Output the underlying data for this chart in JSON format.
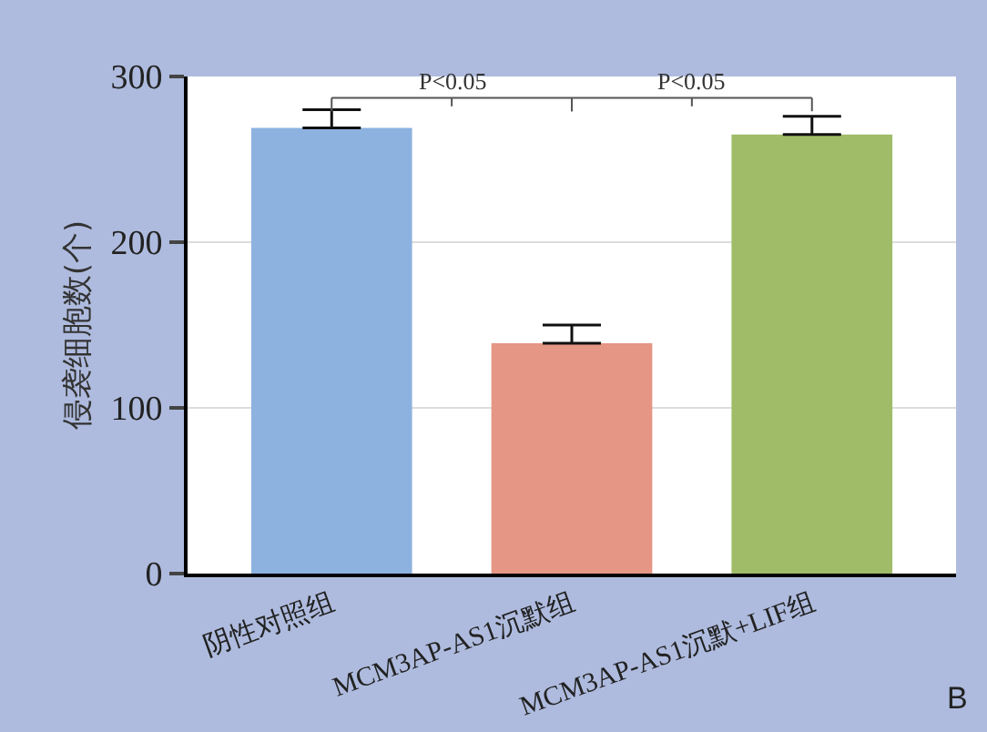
{
  "chart_data": {
    "type": "bar",
    "ylabel": "侵袭细胞数(个)",
    "categories": [
      "阴性对照组",
      "MCM3AP-AS1沉默组",
      "MCM3AP-AS1沉默+LIF组"
    ],
    "values": [
      269,
      139,
      265
    ],
    "colors": [
      "#8db2e0",
      "#e59685",
      "#a0bc68"
    ],
    "errors": [
      [
        269,
        280
      ],
      [
        139,
        150
      ],
      [
        265,
        276
      ]
    ],
    "ylim": [
      0,
      300
    ],
    "yticks": [
      0,
      100,
      200,
      300
    ],
    "grid": "y",
    "annotations": [
      "P<0.05",
      "P<0.05",
      "B"
    ]
  }
}
